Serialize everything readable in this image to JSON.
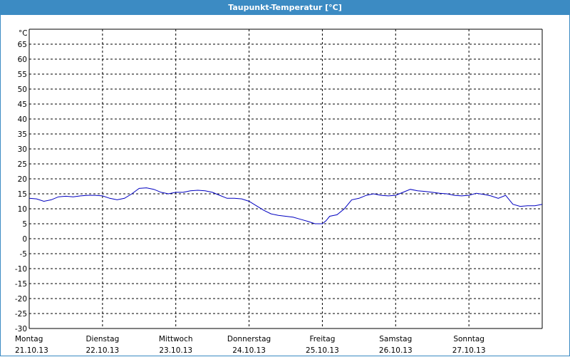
{
  "window": {
    "title": "Taupunkt-Temperatur [°C]"
  },
  "chart_data": {
    "type": "line",
    "title": "Taupunkt-Temperatur [°C]",
    "ylabel": "°C",
    "xlabel": "",
    "ylim": [
      -30,
      70
    ],
    "yticks": [
      65,
      60,
      55,
      50,
      45,
      40,
      35,
      30,
      25,
      20,
      15,
      10,
      5,
      0,
      -5,
      -10,
      -15,
      -20,
      -25,
      -30
    ],
    "xlim": [
      0,
      7
    ],
    "x_unit": "days from 21.10.13 00:00",
    "grid": true,
    "days": [
      {
        "name": "Montag",
        "date": "21.10.13"
      },
      {
        "name": "Dienstag",
        "date": "22.10.13"
      },
      {
        "name": "Mittwoch",
        "date": "23.10.13"
      },
      {
        "name": "Donnerstag",
        "date": "24.10.13"
      },
      {
        "name": "Freitag",
        "date": "25.10.13"
      },
      {
        "name": "Samstag",
        "date": "26.10.13"
      },
      {
        "name": "Sonntag",
        "date": "27.10.13"
      }
    ],
    "series": [
      {
        "color": "#0000c0",
        "x": [
          0.0,
          0.1,
          0.2,
          0.3,
          0.4,
          0.5,
          0.6,
          0.7,
          0.8,
          0.9,
          1.0,
          1.1,
          1.2,
          1.3,
          1.4,
          1.5,
          1.6,
          1.7,
          1.8,
          1.9,
          2.0,
          2.1,
          2.2,
          2.3,
          2.4,
          2.5,
          2.6,
          2.7,
          2.8,
          2.9,
          3.0,
          3.1,
          3.2,
          3.3,
          3.4,
          3.5,
          3.6,
          3.7,
          3.8,
          3.9,
          4.0,
          4.05,
          4.1,
          4.2,
          4.3,
          4.4,
          4.5,
          4.6,
          4.7,
          4.8,
          4.9,
          5.0,
          5.1,
          5.2,
          5.3,
          5.4,
          5.5,
          5.6,
          5.7,
          5.8,
          5.9,
          6.0,
          6.1,
          6.2,
          6.3,
          6.4,
          6.5,
          6.6,
          6.7,
          6.8,
          6.9,
          7.0
        ],
        "values": [
          13.5,
          13.3,
          12.5,
          13.0,
          14.0,
          14.2,
          14.0,
          14.3,
          14.5,
          14.5,
          14.3,
          13.5,
          13.0,
          13.5,
          15.0,
          16.8,
          17.0,
          16.5,
          15.5,
          15.0,
          15.5,
          15.5,
          16.0,
          16.2,
          16.0,
          15.5,
          14.5,
          13.5,
          13.5,
          13.3,
          12.5,
          11.0,
          9.5,
          8.3,
          7.8,
          7.5,
          7.2,
          6.5,
          5.8,
          5.0,
          5.0,
          6.0,
          7.5,
          8.0,
          10.0,
          13.0,
          13.5,
          14.5,
          15.0,
          14.5,
          14.3,
          14.5,
          15.5,
          16.5,
          16.0,
          15.8,
          15.5,
          15.2,
          15.0,
          14.5,
          14.3,
          14.5,
          15.2,
          14.8,
          14.3,
          13.5,
          14.5,
          11.5,
          10.8,
          11.0,
          11.0,
          11.5
        ]
      }
    ]
  }
}
